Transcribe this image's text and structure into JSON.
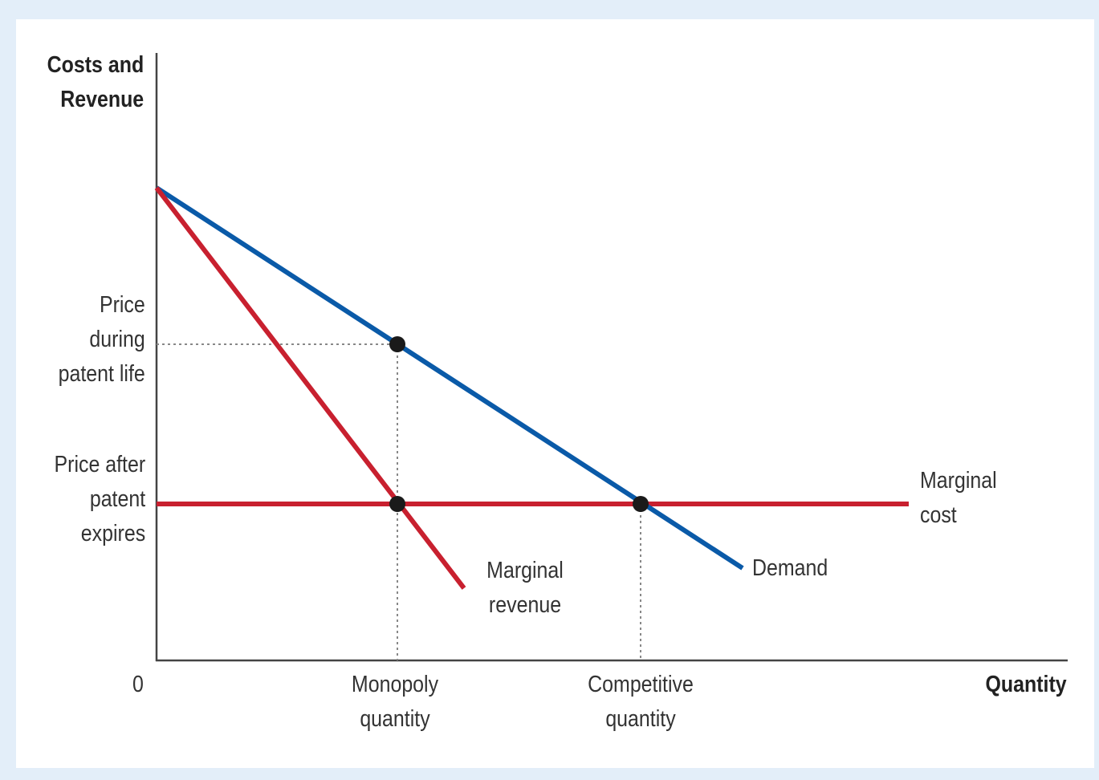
{
  "diagram": {
    "y_axis_title": [
      "Costs and",
      "Revenue"
    ],
    "x_axis_title": "Quantity",
    "origin_label": "0",
    "y_labels": {
      "price_during_patent": [
        "Price",
        "during",
        "patent life"
      ],
      "price_after_patent": [
        "Price after",
        "patent",
        "expires"
      ]
    },
    "x_labels": {
      "monopoly_quantity": [
        "Monopoly",
        "quantity"
      ],
      "competitive_quantity": [
        "Competitive",
        "quantity"
      ]
    },
    "curve_labels": {
      "marginal_revenue": [
        "Marginal",
        "revenue"
      ],
      "demand": "Demand",
      "marginal_cost": [
        "Marginal",
        "cost"
      ]
    },
    "colors": {
      "demand": "#0a5aa8",
      "marginal_revenue": "#c8202f",
      "marginal_cost": "#c8202f",
      "guides": "#888888",
      "points": "#1a1a1a"
    }
  }
}
